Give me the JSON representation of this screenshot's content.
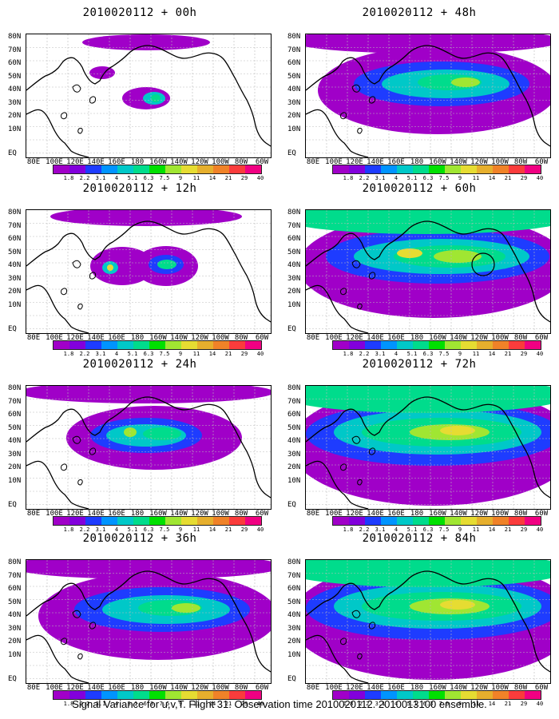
{
  "panels": [
    {
      "title": "2010020112 + 00h"
    },
    {
      "title": "2010020112 + 12h"
    },
    {
      "title": "2010020112 + 24h"
    },
    {
      "title": "2010020112 + 36h"
    },
    {
      "title": "2010020112 + 48h"
    },
    {
      "title": "2010020112 + 60h"
    },
    {
      "title": "2010020112 + 72h"
    },
    {
      "title": "2010020112 + 84h"
    }
  ],
  "lat_labels": [
    "80N",
    "70N",
    "60N",
    "50N",
    "40N",
    "30N",
    "20N",
    "10N",
    "EQ"
  ],
  "lon_labels": [
    "80E",
    "100E",
    "120E",
    "140E",
    "160E",
    "180",
    "160W",
    "140W",
    "120W",
    "100W",
    "80W",
    "60W"
  ],
  "colorbar": {
    "values": [
      "1.8",
      "2.2",
      "3.1",
      "4",
      "5.1",
      "6.3",
      "7.5",
      "9",
      "11",
      "14",
      "21",
      "29",
      "40"
    ],
    "colors": [
      "#a000c8",
      "#8200dc",
      "#1e3cff",
      "#0094ff",
      "#00c8c8",
      "#00dc8c",
      "#00e000",
      "#a0e632",
      "#e6dc32",
      "#e6af2d",
      "#f08228",
      "#fa3c3c",
      "#f00082"
    ]
  },
  "caption": "Signal Variance for u,v,T. Flight 31. Observation time 2010020112. 2010013100 ensemble.",
  "map_colors": {
    "purple": "#a000c8",
    "blue": "#1e3cff",
    "cyan": "#00c8c8",
    "green": "#00dc8c",
    "lime": "#a0e632",
    "yellow": "#e6dc32",
    "orange": "#e6af2d"
  }
}
